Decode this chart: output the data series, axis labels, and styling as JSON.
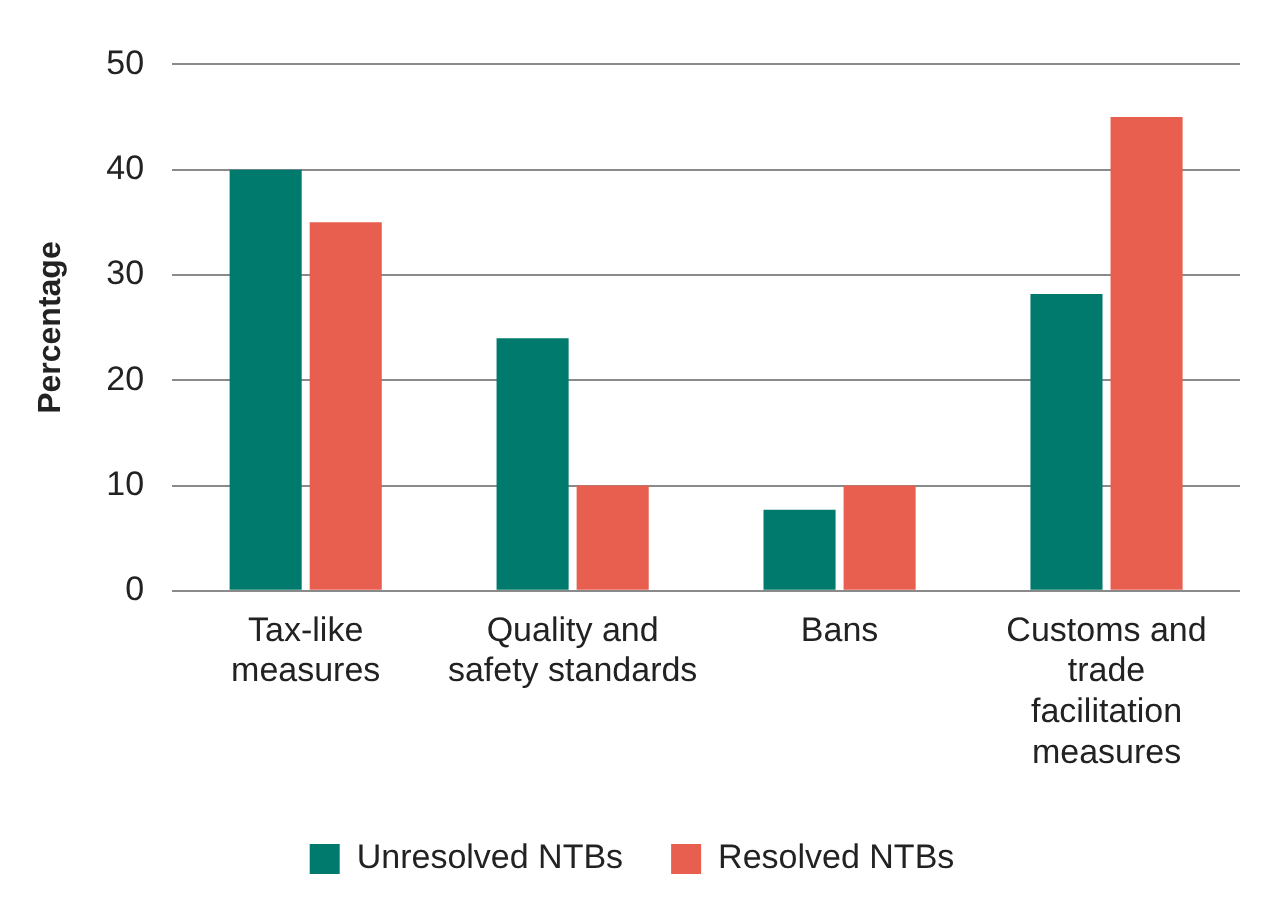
{
  "chart_data": {
    "type": "bar",
    "ylabel": "Percentage",
    "categories": [
      "Tax-like measures",
      "Quality and safety standards",
      "Bans",
      "Customs and trade facilitation measures"
    ],
    "series": [
      {
        "name": "Unresolved NTBs",
        "color": "#007a6c",
        "values": [
          40,
          24,
          7.7,
          28.2
        ]
      },
      {
        "name": "Resolved NTBs",
        "color": "#e85f50",
        "values": [
          35,
          10,
          10,
          45
        ]
      }
    ],
    "ylim": [
      0,
      50
    ],
    "yticks": [
      0,
      10,
      20,
      30,
      40,
      50
    ],
    "grid": "y",
    "legend": "bottom"
  }
}
